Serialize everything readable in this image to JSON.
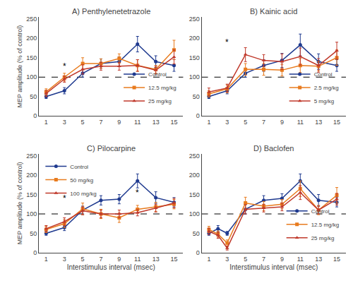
{
  "chart_data": [
    {
      "type": "line",
      "title": "A) Penthylenetetrazole",
      "x": [
        1,
        3,
        5,
        7,
        9,
        11,
        13,
        15
      ],
      "series": [
        {
          "name": "Control",
          "color": "#1F3A8F",
          "marker": "circle",
          "values": [
            50,
            65,
            110,
            135,
            140,
            185,
            140,
            130
          ],
          "errors": [
            5,
            8,
            10,
            12,
            12,
            20,
            15,
            15
          ]
        },
        {
          "name": "12.5 mg/kg",
          "color": "#E87B1E",
          "marker": "square",
          "values": [
            62,
            100,
            135,
            135,
            148,
            130,
            120,
            170
          ],
          "errors": [
            8,
            10,
            15,
            12,
            12,
            15,
            10,
            25
          ]
        },
        {
          "name": "25 mg/kg",
          "color": "#C0392B",
          "marker": "triangle-up",
          "values": [
            58,
            95,
            120,
            128,
            128,
            130,
            118,
            152
          ],
          "errors": [
            8,
            8,
            12,
            10,
            10,
            15,
            10,
            18
          ]
        }
      ],
      "annotations": [
        {
          "text": "*",
          "x": 3,
          "y": 112
        }
      ],
      "reference_lines": [
        {
          "y": 100,
          "line_style": "dashed"
        }
      ],
      "ylabel": "MEP amplitude (% of control)",
      "xlim": [
        0.2,
        16
      ],
      "xticks": [
        1,
        3,
        5,
        7,
        9,
        11,
        13,
        15
      ],
      "ylim": [
        0,
        255
      ],
      "yticks": [
        0,
        50,
        100,
        150,
        200,
        250
      ],
      "legend": "lower right",
      "grid": false
    },
    {
      "type": "line",
      "title": "B) Kainic acid",
      "x": [
        1,
        3,
        5,
        7,
        9,
        11,
        13,
        15
      ],
      "series": [
        {
          "name": "Control",
          "color": "#1F3A8F",
          "marker": "circle",
          "values": [
            50,
            65,
            110,
            130,
            143,
            183,
            140,
            130
          ],
          "errors": [
            5,
            8,
            10,
            15,
            18,
            28,
            20,
            15
          ]
        },
        {
          "name": "2.5 mg/kg",
          "color": "#E87B1E",
          "marker": "square",
          "values": [
            57,
            70,
            120,
            120,
            118,
            130,
            128,
            150
          ],
          "errors": [
            8,
            10,
            15,
            15,
            15,
            18,
            12,
            20
          ]
        },
        {
          "name": "5 mg/kg",
          "color": "#C0392B",
          "marker": "triangle-up",
          "values": [
            62,
            72,
            158,
            143,
            140,
            153,
            130,
            168
          ],
          "errors": [
            10,
            10,
            18,
            15,
            20,
            22,
            18,
            22
          ]
        }
      ],
      "annotations": [
        {
          "text": "*",
          "x": 3,
          "y": 173
        }
      ],
      "reference_lines": [
        {
          "y": 100,
          "line_style": "dashed"
        }
      ],
      "xlim": [
        0.2,
        16
      ],
      "xticks": [
        1,
        3,
        5,
        7,
        9,
        11,
        13,
        15
      ],
      "ylim": [
        0,
        255
      ],
      "yticks": [
        0,
        50,
        100,
        150,
        200,
        250
      ],
      "legend": "lower right",
      "grid": false
    },
    {
      "type": "line",
      "title": "C) Pilocarpine",
      "x": [
        1,
        3,
        5,
        7,
        9,
        11,
        13,
        15
      ],
      "series": [
        {
          "name": "Control",
          "color": "#1F3A8F",
          "marker": "circle",
          "values": [
            50,
            65,
            110,
            135,
            138,
            185,
            142,
            130
          ],
          "errors": [
            5,
            8,
            10,
            12,
            12,
            18,
            15,
            12
          ]
        },
        {
          "name": "50 mg/kg",
          "color": "#E87B1E",
          "marker": "square",
          "values": [
            60,
            75,
            113,
            100,
            90,
            112,
            118,
            125
          ],
          "errors": [
            8,
            10,
            15,
            12,
            12,
            10,
            12,
            12
          ]
        },
        {
          "name": "100 mg/kg",
          "color": "#C0392B",
          "marker": "triangle-up",
          "values": [
            62,
            80,
            108,
            100,
            100,
            103,
            115,
            128
          ],
          "errors": [
            8,
            10,
            10,
            10,
            10,
            8,
            10,
            12
          ]
        }
      ],
      "annotations": [
        {
          "text": "*",
          "x": 3,
          "y": 123
        },
        {
          "text": "*",
          "x": 11,
          "y": 138
        }
      ],
      "reference_lines": [
        {
          "y": 100,
          "line_style": "dashed"
        }
      ],
      "xlabel": "Interstimulus interval (msec)",
      "ylabel": "MEP amplitude (% of control)",
      "xlim": [
        0.2,
        16
      ],
      "xticks": [
        1,
        3,
        5,
        7,
        9,
        11,
        13,
        15
      ],
      "ylim": [
        0,
        255
      ],
      "yticks": [
        0,
        50,
        100,
        150,
        200,
        250
      ],
      "legend": "upper left",
      "grid": false
    },
    {
      "type": "line",
      "title": "D) Baclofen",
      "x": [
        1,
        2,
        3,
        5,
        7,
        9,
        11,
        13,
        15
      ],
      "series": [
        {
          "name": "Control",
          "color": "#1F3A8F",
          "marker": "circle",
          "values": [
            50,
            62,
            50,
            112,
            135,
            140,
            185,
            135,
            130
          ],
          "errors": [
            5,
            8,
            5,
            12,
            12,
            12,
            18,
            15,
            12
          ]
        },
        {
          "name": "12.5 mg/kg",
          "color": "#E87B1E",
          "marker": "square",
          "values": [
            60,
            48,
            25,
            128,
            120,
            125,
            165,
            110,
            148
          ],
          "errors": [
            8,
            8,
            8,
            15,
            12,
            12,
            20,
            12,
            20
          ]
        },
        {
          "name": "25 mg/kg",
          "color": "#C0392B",
          "marker": "triangle-up",
          "values": [
            55,
            45,
            12,
            112,
            115,
            118,
            155,
            110,
            138
          ],
          "errors": [
            8,
            8,
            5,
            12,
            10,
            10,
            18,
            10,
            15
          ]
        }
      ],
      "reference_lines": [
        {
          "y": 100,
          "line_style": "dashed"
        }
      ],
      "xlabel": "Interstimulus interval (msec)",
      "xlim": [
        0.2,
        16
      ],
      "xticks": [
        1,
        3,
        5,
        7,
        9,
        11,
        13,
        15
      ],
      "ylim": [
        0,
        255
      ],
      "yticks": [
        0,
        50,
        100,
        150,
        200,
        250
      ],
      "legend": "lower right",
      "grid": false
    }
  ]
}
